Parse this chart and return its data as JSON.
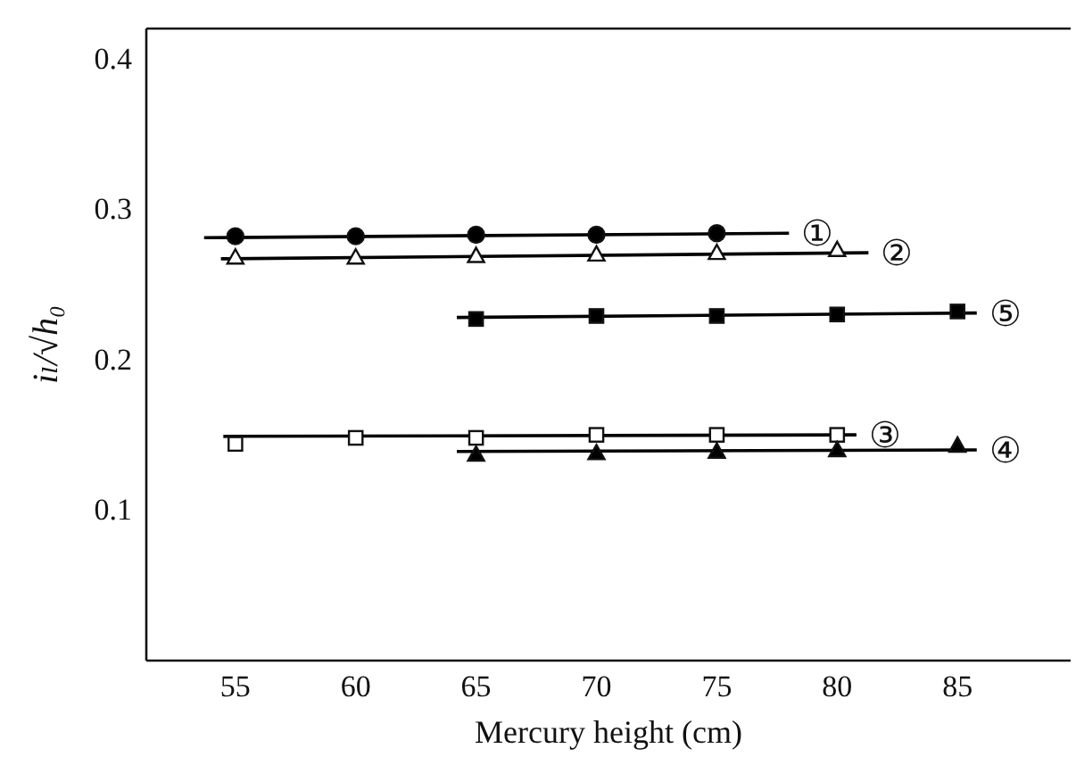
{
  "chart_data": {
    "type": "scatter",
    "xlabel": "Mercury height (cm)",
    "ylabel": "iₗ/√h₀",
    "xlim": [
      51.3,
      89.7
    ],
    "ylim": [
      0,
      0.42
    ],
    "xticks": [
      55,
      60,
      65,
      70,
      75,
      80,
      85
    ],
    "yticks": [
      0.1,
      0.2,
      0.3,
      0.4
    ],
    "grid": false,
    "series": [
      {
        "marker": "circle",
        "color": "#000000",
        "x": [
          55,
          60,
          65,
          70,
          75
        ],
        "values": [
          0.282,
          0.282,
          0.283,
          0.283,
          0.284
        ]
      },
      {
        "type": "line",
        "name": "①",
        "color": "#000000",
        "x": [
          53.7,
          78
        ],
        "values": [
          0.281,
          0.284
        ]
      },
      {
        "marker": "triangle",
        "color": "#ffffff",
        "x": [
          55,
          60,
          65,
          70,
          75,
          80
        ],
        "values": [
          0.268,
          0.268,
          0.269,
          0.27,
          0.271,
          0.273
        ]
      },
      {
        "type": "line",
        "name": "②",
        "color": "#000000",
        "x": [
          54.4,
          81.3
        ],
        "values": [
          0.267,
          0.271
        ]
      },
      {
        "marker": "square",
        "color": "#000000",
        "x": [
          65,
          70,
          75,
          80,
          85
        ],
        "values": [
          0.227,
          0.229,
          0.229,
          0.23,
          0.232
        ]
      },
      {
        "type": "line",
        "name": "⑤",
        "color": "#000000",
        "x": [
          64.2,
          85.8
        ],
        "values": [
          0.228,
          0.231
        ]
      },
      {
        "marker": "square",
        "color": "#ffffff",
        "x": [
          55,
          60,
          65,
          70,
          75,
          80
        ],
        "values": [
          0.144,
          0.148,
          0.148,
          0.15,
          0.15,
          0.15
        ]
      },
      {
        "type": "line",
        "name": "③",
        "color": "#000000",
        "x": [
          54.5,
          80.8
        ],
        "values": [
          0.149,
          0.15
        ]
      },
      {
        "marker": "triangle",
        "color": "#000000",
        "x": [
          65,
          70,
          75,
          80,
          85
        ],
        "values": [
          0.137,
          0.138,
          0.139,
          0.14,
          0.143
        ]
      },
      {
        "type": "line",
        "name": "④",
        "color": "#000000",
        "x": [
          64.2,
          85.8
        ],
        "values": [
          0.139,
          0.14
        ]
      }
    ]
  }
}
